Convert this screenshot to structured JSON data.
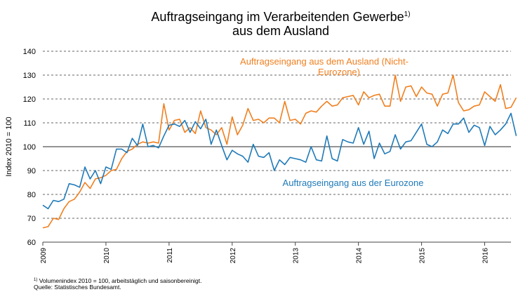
{
  "chart_data": {
    "type": "line",
    "title_line1": "Auftragseingang im Verarbeitenden Gewerbe",
    "title_sup": "1)",
    "title_line2": "aus dem Ausland",
    "ylabel": "Index 2010 = 100",
    "xlabel": "",
    "ylim": [
      60,
      140
    ],
    "y_ticks": [
      60,
      70,
      80,
      90,
      100,
      110,
      120,
      130,
      140
    ],
    "reference_line": 100,
    "grid": "horizontal-dashed",
    "x_range": [
      "2009-01",
      "2016-06"
    ],
    "x_ticks": [
      "2009",
      "2010",
      "2011",
      "2012",
      "2013",
      "2014",
      "2015",
      "2016"
    ],
    "series": [
      {
        "name": "Auftragseingang aus dem Ausland (Nicht-Eurozone)",
        "label_line1": "Auftragseingang aus dem Ausland (Nicht-",
        "label_line2": "Eurozone)",
        "color": "#f07f1e",
        "start": "2009-01",
        "values": [
          66,
          66.5,
          70,
          69.5,
          74,
          77,
          78,
          81,
          85,
          82.5,
          86.5,
          87,
          88,
          90,
          90.5,
          95,
          98,
          99,
          101,
          102,
          101.5,
          102,
          101.5,
          118,
          107,
          111,
          111.5,
          106,
          108,
          105.5,
          115,
          108,
          107,
          105,
          108,
          101,
          112.5,
          105,
          109,
          116,
          111,
          111.5,
          110,
          112,
          112,
          110,
          119,
          111,
          111.5,
          109.5,
          114,
          115,
          114.5,
          117,
          119,
          117,
          117.5,
          120.5,
          121,
          121.5,
          117.5,
          123,
          120.5,
          121.5,
          122,
          117,
          117,
          130,
          119,
          125,
          125.5,
          121,
          125,
          122.5,
          122,
          117,
          122,
          122.5,
          130,
          118.5,
          115,
          115.5,
          117,
          117.5,
          123,
          121,
          119,
          126,
          116,
          116.5,
          120.5
        ]
      },
      {
        "name": "Auftragseingang aus der Eurozone",
        "label_line1": "Auftragseingang aus der Eurozone",
        "color": "#1f7ab8",
        "start": "2009-01",
        "values": [
          75.5,
          74,
          77.5,
          77,
          78,
          84.5,
          84,
          83,
          91.5,
          86.5,
          90,
          84.5,
          91.5,
          90.5,
          99,
          99,
          97.5,
          103.5,
          100.5,
          109.5,
          100,
          100.5,
          99.5,
          104.5,
          109,
          109.5,
          108.5,
          111,
          106,
          110.5,
          107.5,
          111.5,
          101,
          107,
          100.5,
          94.5,
          98.5,
          97,
          96,
          93.5,
          101,
          96,
          95.5,
          97.5,
          90,
          94.5,
          92.5,
          95.5,
          95,
          94.5,
          93.5,
          100,
          94.5,
          94,
          104.5,
          95,
          94,
          103,
          102,
          101.5,
          108,
          101,
          106.5,
          95,
          101.5,
          97,
          98,
          105,
          99,
          102,
          102.5,
          106,
          109.5,
          101,
          100,
          102,
          107,
          105.5,
          109.5,
          109.5,
          112,
          106,
          109,
          108,
          100.5,
          108.5,
          105,
          107,
          109.5,
          114,
          104.5
        ]
      }
    ]
  },
  "footnote_sup": "1)",
  "footnote_line1": "Volumenindex 2010 = 100, arbeitstäglich und saisonbereinigt.",
  "footnote_line2": "Quelle: Statistisches Bundesamt."
}
